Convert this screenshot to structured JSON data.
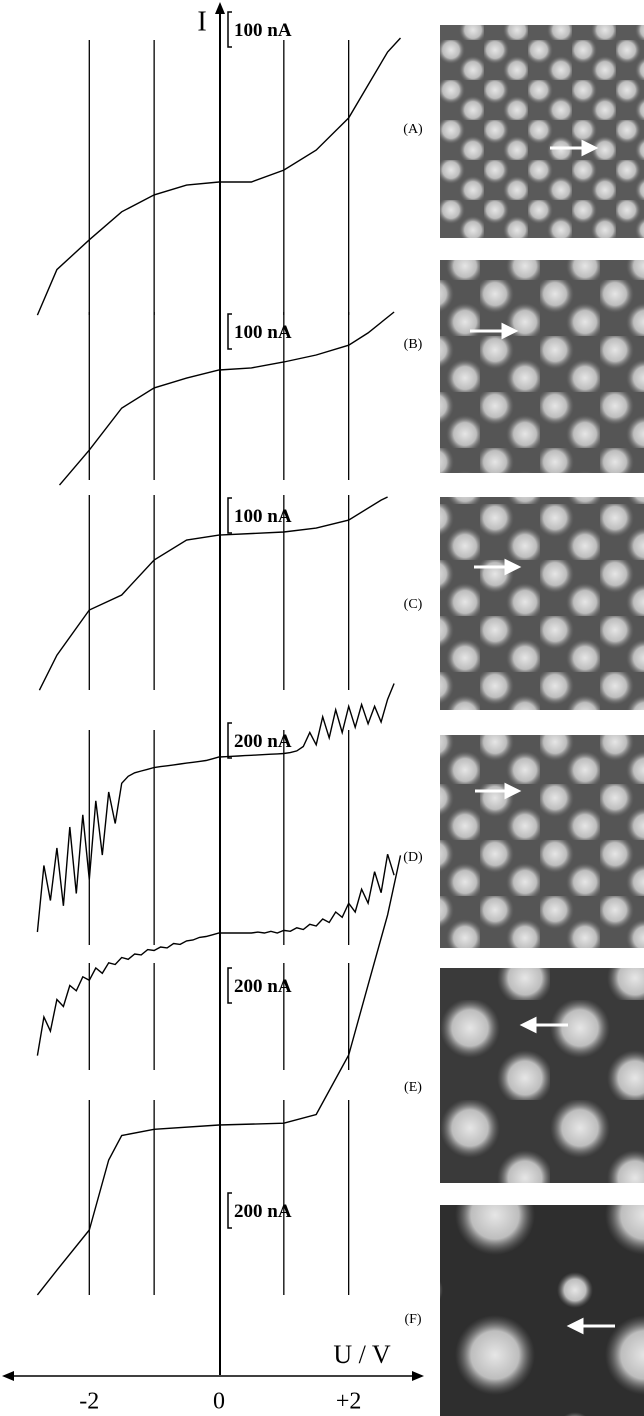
{
  "x_axis": {
    "label": "U / V",
    "y_label": "I",
    "xlim": [
      -3.3,
      3.1
    ],
    "xticks": [
      -2,
      0,
      {
        "value": 2,
        "label": "+2"
      }
    ],
    "grid_x": [
      -2,
      -1,
      0,
      1,
      2
    ]
  },
  "chart_data": [
    {
      "type": "line",
      "label": "(A)",
      "scale_bar": {
        "value": 100,
        "label": "100 nA"
      },
      "ylim": [
        -394,
        491
      ],
      "x": [
        -2.8,
        -2.5,
        -2,
        -1.5,
        -1,
        -0.5,
        0,
        0.5,
        1,
        1.5,
        2,
        2.3,
        2.6,
        2.8
      ],
      "values": [
        -380,
        -250,
        -165,
        -85,
        -37,
        -9,
        0,
        0,
        34,
        91,
        183,
        277,
        371,
        411
      ]
    },
    {
      "type": "line",
      "label": "(B)",
      "scale_bar": {
        "value": 100,
        "label": "100 nA"
      },
      "ylim": [
        -343,
        143
      ],
      "x": [
        -2.46,
        -2,
        -1.5,
        -1,
        -0.5,
        0,
        0.5,
        1,
        1.5,
        2,
        2.3,
        2.7
      ],
      "values": [
        -329,
        -229,
        -109,
        -51,
        -23,
        0,
        6,
        23,
        43,
        71,
        106,
        166
      ]
    },
    {
      "type": "line",
      "label": "(C)",
      "scale_bar": {
        "value": 100,
        "label": "100 nA"
      },
      "ylim": [
        -471,
        129
      ],
      "x": [
        -2.77,
        -2.5,
        -2,
        -1.5,
        -1,
        -0.5,
        0,
        1,
        1.5,
        2,
        2.5,
        2.6
      ],
      "values": [
        -443,
        -343,
        -214,
        -171,
        -71,
        -14,
        0,
        9,
        20,
        43,
        100,
        109
      ]
    },
    {
      "type": "line",
      "label": "(D)",
      "scale_bar": {
        "value": 200,
        "label": "200 nA"
      },
      "ylim": [
        -1074,
        440
      ],
      "x": [
        -2.8,
        -2.7,
        -2.6,
        -2.5,
        -2.4,
        -2.3,
        -2.2,
        -2.1,
        -2,
        -1.9,
        -1.8,
        -1.7,
        -1.6,
        -1.5,
        -1.4,
        -1.3,
        -1.2,
        -1.1,
        -1,
        -0.9,
        -0.8,
        -0.7,
        -0.6,
        -0.5,
        -0.4,
        -0.3,
        -0.2,
        -0.1,
        0,
        0.1,
        0.2,
        0.3,
        0.4,
        0.5,
        0.6,
        0.7,
        0.8,
        0.9,
        1,
        1.1,
        1.2,
        1.3,
        1.4,
        1.5,
        1.6,
        1.7,
        1.8,
        1.9,
        2,
        2.1,
        2.2,
        2.3,
        2.4,
        2.5,
        2.6,
        2.7
      ],
      "values": [
        -1000,
        -620,
        -820,
        -520,
        -850,
        -400,
        -780,
        -330,
        -700,
        -250,
        -560,
        -200,
        -380,
        -150,
        -110,
        -90,
        -80,
        -70,
        -60,
        -55,
        -50,
        -45,
        -40,
        -35,
        -30,
        -25,
        -20,
        -10,
        0,
        2,
        4,
        6,
        8,
        10,
        12,
        14,
        16,
        18,
        20,
        25,
        35,
        60,
        140,
        70,
        230,
        110,
        270,
        140,
        290,
        170,
        300,
        190,
        290,
        200,
        330,
        420
      ]
    },
    {
      "type": "line",
      "label": "(E)",
      "scale_bar": {
        "value": 200,
        "label": "200 nA"
      },
      "ylim": [
        -811,
        417
      ],
      "x": [
        -2.8,
        -2.7,
        -2.6,
        -2.5,
        -2.4,
        -2.3,
        -2.2,
        -2.1,
        -2,
        -1.9,
        -1.8,
        -1.7,
        -1.6,
        -1.5,
        -1.4,
        -1.3,
        -1.2,
        -1.1,
        -1,
        -0.9,
        -0.8,
        -0.7,
        -0.6,
        -0.5,
        -0.4,
        -0.3,
        -0.2,
        -0.1,
        0,
        0.1,
        0.2,
        0.3,
        0.4,
        0.5,
        0.6,
        0.7,
        0.8,
        0.9,
        1,
        1.1,
        1.2,
        1.3,
        1.4,
        1.5,
        1.6,
        1.7,
        1.8,
        1.9,
        2,
        2.1,
        2.2,
        2.3,
        2.4,
        2.5,
        2.6,
        2.7
      ],
      "values": [
        -700,
        -480,
        -560,
        -380,
        -420,
        -300,
        -330,
        -250,
        -270,
        -200,
        -230,
        -170,
        -180,
        -140,
        -150,
        -120,
        -125,
        -95,
        -100,
        -80,
        -85,
        -60,
        -65,
        -45,
        -40,
        -25,
        -20,
        -10,
        0,
        0,
        0,
        0,
        0,
        0,
        5,
        0,
        10,
        0,
        15,
        10,
        30,
        20,
        50,
        40,
        80,
        60,
        120,
        90,
        170,
        120,
        250,
        170,
        350,
        230,
        450,
        330
      ]
    },
    {
      "type": "line",
      "label": "(F)",
      "scale_bar": {
        "value": 200,
        "label": "200 nA"
      },
      "ylim": [
        -1000,
        1571
      ],
      "x": [
        -2.8,
        -2.5,
        -2,
        -1.7,
        -1.5,
        -1,
        0,
        1,
        1.5,
        2,
        2.3,
        2.6,
        2.8
      ],
      "values": [
        -971,
        -830,
        -600,
        -200,
        -60,
        -25,
        0,
        10,
        60,
        400,
        800,
        1200,
        1540
      ]
    }
  ]
}
